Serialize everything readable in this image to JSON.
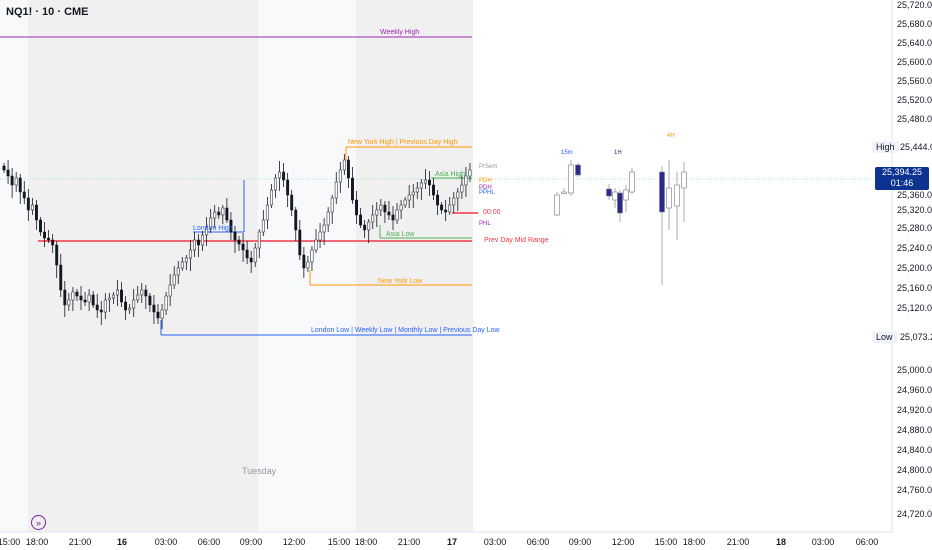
{
  "symbol": "NQ1! · 10 · CME",
  "sessions": {
    "tuesday_label": "Tuesday"
  },
  "time_axis": [
    {
      "label": "15:00",
      "bold": false
    },
    {
      "label": "18:00",
      "bold": false
    },
    {
      "label": "21:00",
      "bold": false
    },
    {
      "label": "16",
      "bold": true
    },
    {
      "label": "03:00",
      "bold": false
    },
    {
      "label": "06:00",
      "bold": false
    },
    {
      "label": "09:00",
      "bold": false
    },
    {
      "label": "12:00",
      "bold": false
    },
    {
      "label": "15:00",
      "bold": false
    },
    {
      "label": "18:00",
      "bold": false
    },
    {
      "label": "21:00",
      "bold": false
    },
    {
      "label": "17",
      "bold": true
    },
    {
      "label": "03:00",
      "bold": false
    },
    {
      "label": "06:00",
      "bold": false
    },
    {
      "label": "09:00",
      "bold": false
    },
    {
      "label": "12:00",
      "bold": false
    },
    {
      "label": "15:00",
      "bold": false
    },
    {
      "label": "18:00",
      "bold": false
    },
    {
      "label": "21:00",
      "bold": false
    },
    {
      "label": "18",
      "bold": true
    },
    {
      "label": "03:00",
      "bold": false
    },
    {
      "label": "06:00",
      "bold": false
    }
  ],
  "price_axis": [
    "25,720.00",
    "25,680.00",
    "25,640.00",
    "25,600.00",
    "25,560.00",
    "25,520.00",
    "25,480.00",
    "25,360.00",
    "25,320.00",
    "25,280.00",
    "25,240.00",
    "25,200.00",
    "25,160.00",
    "25,120.00",
    "25,000.00",
    "24,960.00",
    "24,920.00",
    "24,880.00",
    "24,840.00",
    "24,800.00",
    "24,760.00",
    "24,720.00"
  ],
  "price_tags": {
    "high": {
      "label": "High",
      "value": "25,444.00"
    },
    "low": {
      "label": "Low",
      "value": "25,073.25"
    },
    "current": {
      "value": "25,394.25",
      "countdown": "01:46"
    }
  },
  "levels": {
    "weekly_high": "Weekly High",
    "ny_high": "New York High | Previous Day High",
    "asia_high": "Asia High",
    "london_high": "London High",
    "asia_low": "Asia Low",
    "prev_day_mid": "Prev Day Mid Range",
    "ny_low": "New York Low",
    "london_low": "London Low | Weekly Low | Monthly Low | Previous Day Low",
    "midnight": "00:00",
    "mini_labels": [
      "PrSem",
      "PDH",
      "PDH",
      "PPHL",
      "PHL"
    ]
  },
  "htf_labels": [
    "15m",
    "1H",
    "4H"
  ],
  "colors": {
    "bull": "#2962ff",
    "bear": "#2a2a8c",
    "weekly_high": "#9c27b0",
    "orange": "#ff9800",
    "green": "#4caf50",
    "red": "#f23645",
    "blue_level": "#2962ff",
    "current_price": "#0d3390"
  }
}
